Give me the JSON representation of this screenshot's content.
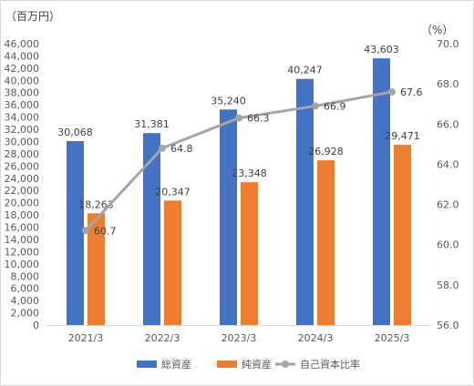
{
  "chart_data": {
    "type": "bar",
    "categories": [
      "2021/3",
      "2022/3",
      "2023/3",
      "2024/3",
      "2025/3"
    ],
    "series": [
      {
        "name": "総資産",
        "type": "bar",
        "axis": "left",
        "color": "#4472C4",
        "values": [
          30068,
          31381,
          35240,
          40247,
          43603
        ],
        "labels": [
          "30,068",
          "31,381",
          "35,240",
          "40,247",
          "43,603"
        ]
      },
      {
        "name": "純資産",
        "type": "bar",
        "axis": "left",
        "color": "#ED7D31",
        "values": [
          18263,
          20347,
          23348,
          26928,
          29471
        ],
        "labels": [
          "18,263",
          "20,347",
          "23,348",
          "26,928",
          "29,471"
        ]
      },
      {
        "name": "自己資本比率",
        "type": "line",
        "axis": "right",
        "color": "#A5A5A5",
        "values": [
          60.7,
          64.8,
          66.3,
          66.9,
          67.6
        ],
        "labels": [
          "60.7",
          "64.8",
          "66.3",
          "66.9",
          "67.6"
        ]
      }
    ],
    "y_left": {
      "unit": "（百万円）",
      "ylim": [
        0,
        46000
      ],
      "ticks": [
        "0",
        "2,000",
        "4,000",
        "6,000",
        "8,000",
        "10,000",
        "12,000",
        "14,000",
        "16,000",
        "18,000",
        "20,000",
        "22,000",
        "24,000",
        "26,000",
        "28,000",
        "30,000",
        "32,000",
        "34,000",
        "36,000",
        "38,000",
        "40,000",
        "42,000",
        "44,000",
        "46,000"
      ]
    },
    "y_right": {
      "unit": "（%）",
      "ylim": [
        56,
        70
      ],
      "ticks": [
        "56.0",
        "58.0",
        "60.0",
        "62.0",
        "64.0",
        "66.0",
        "68.0",
        "70.0"
      ]
    },
    "grid": false,
    "legend_position": "bottom"
  }
}
